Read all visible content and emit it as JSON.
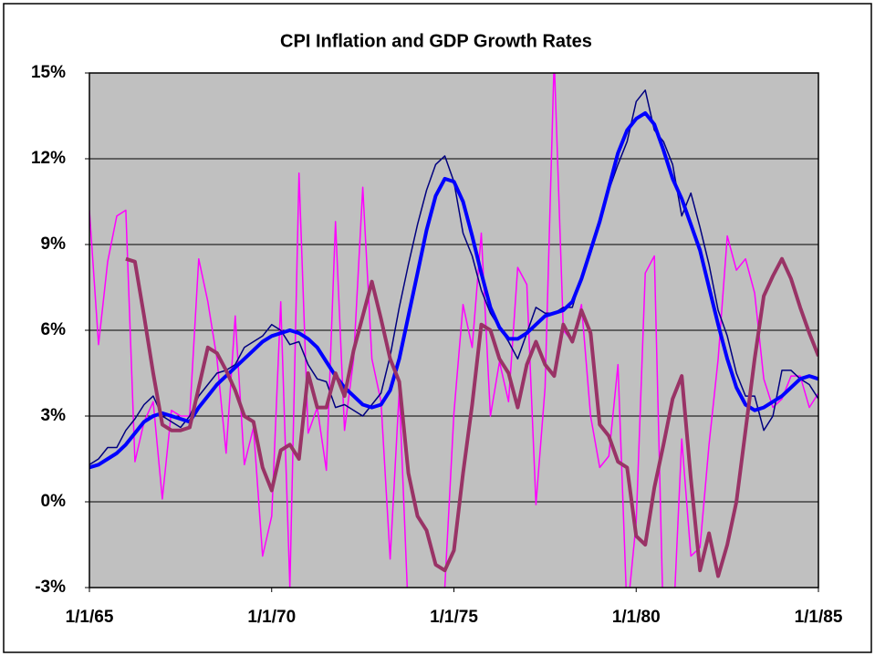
{
  "chart_data": {
    "type": "line",
    "title": "CPI Inflation and GDP Growth Rates",
    "x": [
      "1/1/65",
      "4/1/65",
      "7/1/65",
      "10/1/65",
      "1/1/66",
      "4/1/66",
      "7/1/66",
      "10/1/66",
      "1/1/67",
      "4/1/67",
      "7/1/67",
      "10/1/67",
      "1/1/68",
      "4/1/68",
      "7/1/68",
      "10/1/68",
      "1/1/69",
      "4/1/69",
      "7/1/69",
      "10/1/69",
      "1/1/70",
      "4/1/70",
      "7/1/70",
      "10/1/70",
      "1/1/71",
      "4/1/71",
      "7/1/71",
      "10/1/71",
      "1/1/72",
      "4/1/72",
      "7/1/72",
      "10/1/72",
      "1/1/73",
      "4/1/73",
      "7/1/73",
      "10/1/73",
      "1/1/74",
      "4/1/74",
      "7/1/74",
      "10/1/74",
      "1/1/75",
      "4/1/75",
      "7/1/75",
      "10/1/75",
      "1/1/76",
      "4/1/76",
      "7/1/76",
      "10/1/76",
      "1/1/77",
      "4/1/77",
      "7/1/77",
      "10/1/77",
      "1/1/78",
      "4/1/78",
      "7/1/78",
      "10/1/78",
      "1/1/79",
      "4/1/79",
      "7/1/79",
      "10/1/79",
      "1/1/80",
      "4/1/80",
      "7/1/80",
      "10/1/80",
      "1/1/81",
      "4/1/81",
      "7/1/81",
      "10/1/81",
      "1/1/82",
      "4/1/82",
      "7/1/82",
      "10/1/82",
      "1/1/83",
      "4/1/83",
      "7/1/83",
      "10/1/83",
      "1/1/84",
      "4/1/84",
      "7/1/84",
      "10/1/84",
      "1/1/85"
    ],
    "series": [
      {
        "color": "#ff00ff",
        "linewidth": 1.5,
        "values": [
          10.2,
          5.5,
          8.4,
          10.0,
          10.2,
          1.4,
          2.8,
          3.5,
          0.1,
          3.2,
          3.0,
          3.0,
          8.5,
          7.0,
          5.0,
          1.7,
          6.5,
          1.3,
          2.6,
          -1.9,
          -0.5,
          7.0,
          -3.0,
          11.5,
          2.4,
          3.3,
          1.1,
          9.8,
          2.5,
          5.0,
          11.0,
          5.0,
          3.5,
          -2.0,
          3.9,
          -4.0,
          -3.5,
          -4.5,
          -4.5,
          -3.0,
          3.1,
          6.9,
          5.4,
          9.4,
          3.0,
          4.9,
          3.5,
          8.2,
          7.6,
          -0.1,
          4.0,
          15.5,
          6.0,
          5.6,
          6.9,
          3.0,
          1.2,
          1.6,
          4.8,
          -4.0,
          -0.7,
          8.0,
          8.6,
          -4.5,
          -4.8,
          2.2,
          -1.9,
          -1.6,
          2.0,
          5.0,
          9.3,
          8.1,
          8.5,
          7.3,
          4.3,
          3.3,
          3.6,
          4.4,
          4.4,
          3.3,
          3.8
        ]
      },
      {
        "color": "#000080",
        "linewidth": 1.5,
        "values": [
          1.3,
          1.5,
          1.9,
          1.9,
          2.5,
          2.9,
          3.4,
          3.7,
          3.0,
          2.8,
          2.6,
          3.0,
          3.7,
          4.1,
          4.5,
          4.6,
          4.8,
          5.4,
          5.6,
          5.8,
          6.2,
          6.0,
          5.5,
          5.6,
          4.8,
          4.3,
          4.2,
          3.3,
          3.4,
          3.2,
          3.0,
          3.4,
          3.8,
          5.1,
          6.8,
          8.3,
          9.7,
          10.9,
          11.8,
          12.1,
          11.2,
          9.4,
          8.6,
          7.4,
          6.6,
          6.1,
          5.6,
          5.0,
          5.9,
          6.8,
          6.6,
          6.6,
          6.8,
          6.8,
          7.9,
          8.9,
          9.8,
          10.9,
          11.8,
          12.6,
          14.0,
          14.4,
          13.0,
          12.6,
          11.8,
          10.0,
          10.8,
          9.6,
          8.3,
          6.7,
          5.8,
          4.5,
          3.7,
          3.7,
          2.5,
          3.0,
          4.6,
          4.6,
          4.3,
          4.1,
          3.6
        ]
      },
      {
        "color": "#0000ff",
        "linewidth": 4,
        "values": [
          1.2,
          1.3,
          1.5,
          1.7,
          2.0,
          2.4,
          2.8,
          3.0,
          3.1,
          3.0,
          2.9,
          2.8,
          3.3,
          3.7,
          4.1,
          4.4,
          4.7,
          5.0,
          5.3,
          5.6,
          5.8,
          5.9,
          6.0,
          5.9,
          5.7,
          5.4,
          4.9,
          4.4,
          4.0,
          3.7,
          3.4,
          3.3,
          3.4,
          3.9,
          5.0,
          6.5,
          8.0,
          9.5,
          10.7,
          11.3,
          11.2,
          10.5,
          9.3,
          8.0,
          6.8,
          6.1,
          5.7,
          5.7,
          5.9,
          6.2,
          6.5,
          6.6,
          6.7,
          7.0,
          7.8,
          8.8,
          9.8,
          11.0,
          12.2,
          13.0,
          13.4,
          13.6,
          13.2,
          12.3,
          11.3,
          10.6,
          9.7,
          8.8,
          7.5,
          6.2,
          5.0,
          4.0,
          3.4,
          3.2,
          3.3,
          3.5,
          3.7,
          4.0,
          4.3,
          4.4,
          4.3
        ]
      },
      {
        "color": "#993366",
        "linewidth": 4,
        "values": [
          null,
          null,
          null,
          null,
          8.5,
          8.4,
          6.5,
          4.5,
          2.7,
          2.5,
          2.5,
          2.6,
          4.0,
          5.4,
          5.2,
          4.6,
          3.9,
          3.0,
          2.8,
          1.2,
          0.4,
          1.8,
          2.0,
          1.5,
          4.5,
          3.3,
          3.3,
          4.5,
          3.7,
          5.3,
          6.5,
          7.7,
          6.4,
          5.0,
          4.2,
          1.0,
          -0.5,
          -1.0,
          -2.2,
          -2.4,
          -1.7,
          1.0,
          3.4,
          6.2,
          6.0,
          5.0,
          4.5,
          3.3,
          4.8,
          5.6,
          4.8,
          4.4,
          6.2,
          5.6,
          6.7,
          5.9,
          2.7,
          2.3,
          1.4,
          1.2,
          -1.2,
          -1.5,
          0.5,
          2.0,
          3.6,
          4.4,
          0.8,
          -2.4,
          -1.1,
          -2.6,
          -1.5,
          0.0,
          2.5,
          5.0,
          7.2,
          7.9,
          8.5,
          7.8,
          6.8,
          5.9,
          5.1
        ]
      }
    ],
    "xticks": [
      "1/1/65",
      "1/1/70",
      "1/1/75",
      "1/1/80",
      "1/1/85"
    ],
    "ylim": [
      -3,
      15
    ],
    "yticks": [
      {
        "value": -3,
        "label": "-3%"
      },
      {
        "value": 0,
        "label": "0%"
      },
      {
        "value": 3,
        "label": "3%"
      },
      {
        "value": 6,
        "label": "6%"
      },
      {
        "value": 9,
        "label": "9%"
      },
      {
        "value": 12,
        "label": "12%"
      },
      {
        "value": 15,
        "label": "15%"
      }
    ],
    "grid": true,
    "plot_background": "#c0c0c0"
  }
}
